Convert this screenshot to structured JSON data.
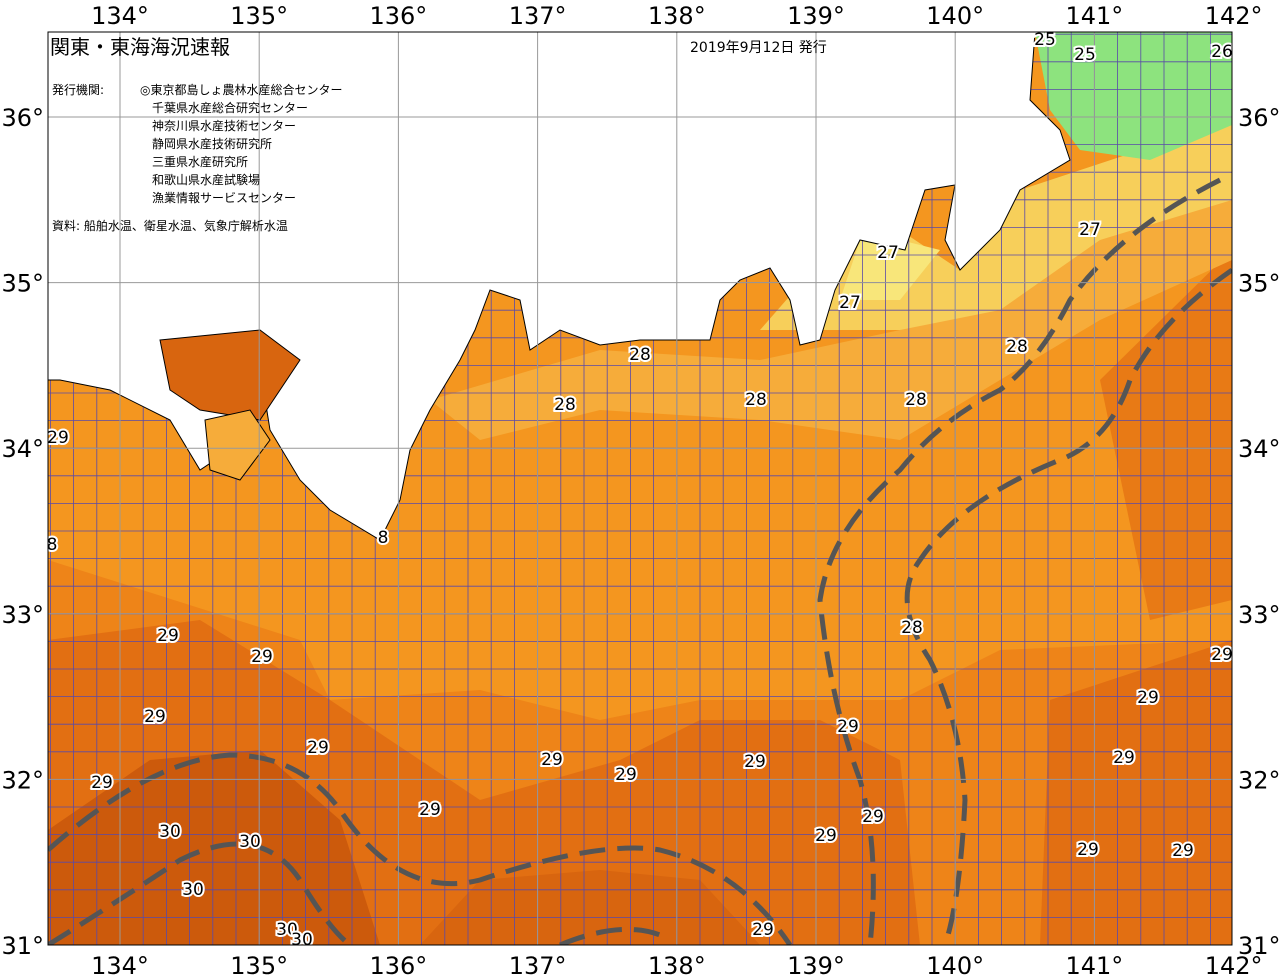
{
  "header": {
    "title": "関東・東海海況速報",
    "date": "2019年9月12日 発行"
  },
  "issuers": {
    "label": "発行機関:",
    "list": [
      "◎東京都島しょ農林水産総合センター",
      "千葉県水産総合研究センター",
      "神奈川県水産技術センター",
      "静岡県水産技術研究所",
      "三重県水産研究所",
      "和歌山県水産試験場",
      "漁業情報サービスセンター"
    ]
  },
  "source": "資料: 船舶水温、衛星水温、気象庁解析水温",
  "map": {
    "lon_labels": [
      "134°",
      "135°",
      "136°",
      "137°",
      "138°",
      "139°",
      "140°",
      "141°",
      "142°"
    ],
    "lat_labels": [
      "36°",
      "35°",
      "34°",
      "33°",
      "32°",
      "31°"
    ],
    "contour_labels": [
      "25",
      "25",
      "26",
      "27",
      "27",
      "27",
      "28",
      "28",
      "28",
      "28",
      "28",
      "29",
      "8",
      "8",
      "28",
      "29",
      "29",
      "29",
      "29",
      "29",
      "29",
      "29",
      "29",
      "29",
      "29",
      "29",
      "29",
      "29",
      "29",
      "29",
      "29",
      "29",
      "29",
      "30",
      "30",
      "30",
      "30",
      "30"
    ]
  }
}
